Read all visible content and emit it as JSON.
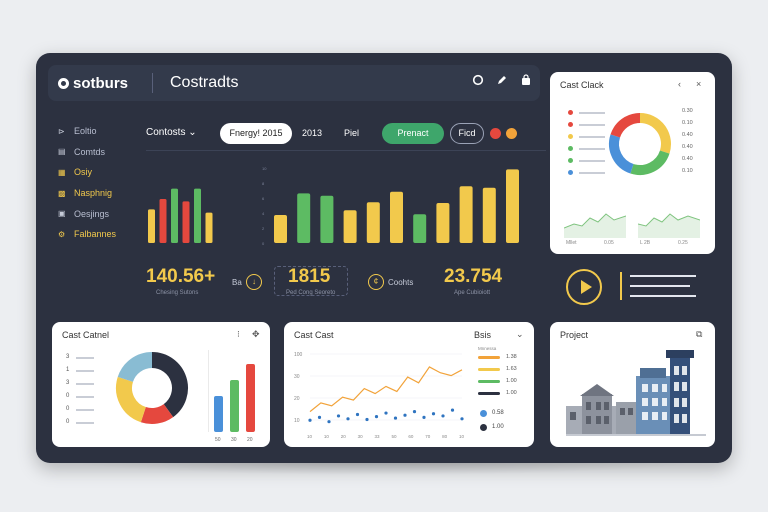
{
  "header": {
    "brand": "sotburs",
    "title": "Costradts",
    "icons": [
      "record-icon",
      "edit-icon",
      "bag-icon"
    ]
  },
  "sidebar": {
    "items": [
      {
        "icon": "folder-icon",
        "label": "Eoltio",
        "highlighted": false
      },
      {
        "icon": "list-icon",
        "label": "Comtds",
        "highlighted": false
      },
      {
        "icon": "calendar-icon",
        "label": "Osiy",
        "highlighted": true
      },
      {
        "icon": "grid-icon",
        "label": "Nasphnig",
        "highlighted": true
      },
      {
        "icon": "layers-icon",
        "label": "Oesjings",
        "highlighted": false
      },
      {
        "icon": "settings-icon",
        "label": "Falbannes",
        "highlighted": true
      }
    ]
  },
  "controls": {
    "label": "Contosts",
    "date": "Fnergy! 2015",
    "year": "2013",
    "period": "Piel",
    "primary_button": "Prenact",
    "secondary_button": "Ficd",
    "status_colors": [
      "#e5483e",
      "#f2a33a"
    ]
  },
  "main_chart": {
    "ticks": [
      "10",
      "8",
      "6",
      "4",
      "2",
      "0"
    ],
    "bars_left": [
      {
        "value": 0.42,
        "color": "#f2c94c"
      },
      {
        "value": 0.55,
        "color": "#e5483e"
      },
      {
        "value": 0.68,
        "color": "#5dbb63"
      },
      {
        "value": 0.52,
        "color": "#e5483e"
      },
      {
        "value": 0.68,
        "color": "#5dbb63"
      },
      {
        "value": 0.38,
        "color": "#f2c94c"
      }
    ],
    "bars_right": [
      {
        "value": 0.35,
        "color": "#f2c94c"
      },
      {
        "value": 0.62,
        "color": "#5dbb63"
      },
      {
        "value": 0.59,
        "color": "#5dbb63"
      },
      {
        "value": 0.41,
        "color": "#f2c94c"
      },
      {
        "value": 0.51,
        "color": "#f2c94c"
      },
      {
        "value": 0.64,
        "color": "#f2c94c"
      },
      {
        "value": 0.36,
        "color": "#5dbb63"
      },
      {
        "value": 0.5,
        "color": "#f2c94c"
      },
      {
        "value": 0.71,
        "color": "#f2c94c"
      },
      {
        "value": 0.69,
        "color": "#f2c94c"
      },
      {
        "value": 0.92,
        "color": "#f2c94c"
      }
    ]
  },
  "stats": {
    "s1_value": "140.56+",
    "s1_sub": "Chesing Sutons",
    "s2_prefix": "Ba",
    "s2_value": "1815",
    "s2_sub": "Ped Cong Seoreto",
    "s3_label": "Coohts",
    "s4_value": "23.754",
    "s4_sub": "Ape Cubioiott"
  },
  "card_top_right": {
    "title": "Cast Clack",
    "legend": [
      "#e5483e",
      "#e5483e",
      "#f2c94c",
      "#5dbb63",
      "#5dbb63",
      "#4a90d9"
    ],
    "legend_values": [
      "0.30",
      "0.10",
      "0.40",
      "0.40",
      "0.40",
      "0.10"
    ],
    "donut": [
      {
        "value": 30,
        "color": "#f2c94c"
      },
      {
        "value": 25,
        "color": "#5dbb63"
      },
      {
        "value": 25,
        "color": "#4a90d9"
      },
      {
        "value": 20,
        "color": "#e5483e"
      }
    ],
    "mini_labels": [
      "Mllet",
      "0.05",
      "L 2B",
      "0.25"
    ]
  },
  "card_bottom_left": {
    "title": "Cast Catnel",
    "numbers": [
      "3",
      "1",
      "3",
      "0",
      "0",
      "0"
    ],
    "donut": [
      {
        "value": 40,
        "color": "#2c3140"
      },
      {
        "value": 15,
        "color": "#e5483e"
      },
      {
        "value": 25,
        "color": "#f2c94c"
      },
      {
        "value": 20,
        "color": "#89bcd3"
      }
    ],
    "bars": [
      {
        "value": 0.45,
        "color": "#4a90d9"
      },
      {
        "value": 0.65,
        "color": "#5dbb63"
      },
      {
        "value": 0.85,
        "color": "#e5483e"
      }
    ],
    "bar_labels": [
      "50",
      "30",
      "20"
    ]
  },
  "card_bottom_mid": {
    "title": "Cast Cast",
    "y_ticks": [
      "100",
      "30",
      "20",
      "10"
    ],
    "line": [
      0.2,
      0.32,
      0.28,
      0.4,
      0.36,
      0.52,
      0.45,
      0.55,
      0.48,
      0.68,
      0.6,
      0.82,
      0.74,
      0.7,
      0.78
    ],
    "points": [
      0.08,
      0.12,
      0.06,
      0.14,
      0.1,
      0.16,
      0.09,
      0.13,
      0.18,
      0.11,
      0.15,
      0.2,
      0.12,
      0.17,
      0.14,
      0.22,
      0.1
    ],
    "x_labels": [
      "10",
      "10",
      "20",
      "30",
      "33",
      "50",
      "60",
      "70",
      "80",
      "10"
    ],
    "legend_title": "Bsis",
    "legend_sub": "Mnnessa",
    "legend": [
      {
        "color": "#f2a33a",
        "value": "1.38"
      },
      {
        "color": "#f2c94c",
        "value": "1.63"
      },
      {
        "color": "#5dbb63",
        "value": "1.00"
      },
      {
        "color": "#2c3140",
        "value": "1.00"
      }
    ],
    "legend_badges": [
      {
        "color": "#4a90d9",
        "value": "0.58"
      },
      {
        "color": "#2c3140",
        "value": "1.00"
      }
    ]
  },
  "card_bottom_right": {
    "title": "Project"
  }
}
